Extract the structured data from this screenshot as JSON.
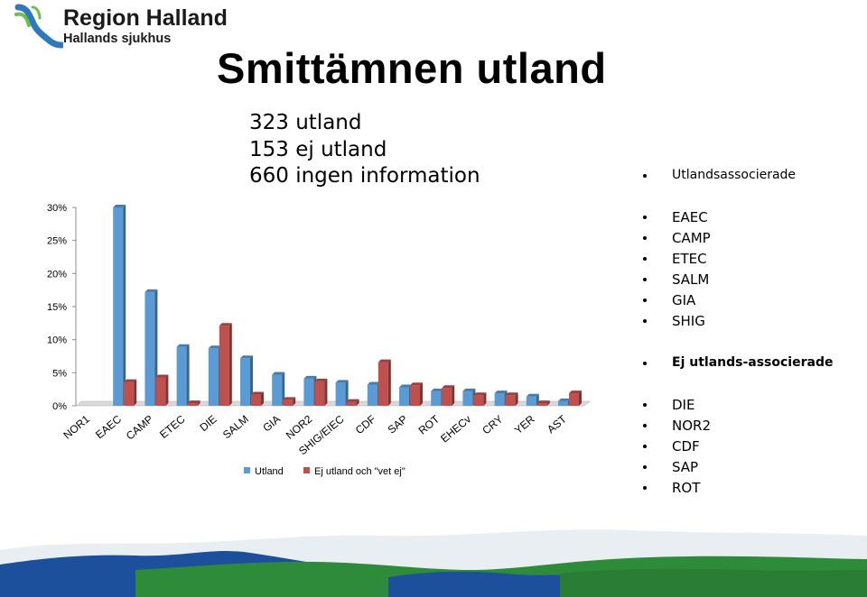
{
  "logo": {
    "title": "Region Halland",
    "subtitle": "Hallands sjukhus"
  },
  "slide": {
    "title": "Smittämnen utland",
    "counts": [
      "323 utland",
      "153 ej utland",
      "660 ingen information"
    ]
  },
  "bullets": {
    "heading_associated": "Utlandsassocierade",
    "associated": [
      "EAEC",
      "CAMP",
      "ETEC",
      "SALM",
      "GIA",
      "SHIG"
    ],
    "heading_not_associated": "Ej utlands-associerade",
    "not_associated": [
      "DIE",
      "NOR2",
      "CDF",
      "SAP",
      "ROT"
    ]
  },
  "chart_data": {
    "type": "bar",
    "style": "3d-clustered-column",
    "categories": [
      "NOR1",
      "EAEC",
      "CAMP",
      "ETEC",
      "DIE",
      "SALM",
      "GIA",
      "NOR2",
      "SHIG/EIEC",
      "CDF",
      "SAP",
      "ROT",
      "EHECv",
      "CRY",
      "YER",
      "AST"
    ],
    "series": [
      {
        "name": "Utland",
        "color": "#5b9bd5",
        "values": [
          0,
          30,
          17.2,
          8.9,
          8.7,
          7.2,
          4.7,
          4.1,
          3.5,
          3.2,
          2.8,
          2.2,
          2.2,
          1.9,
          1.4,
          0.7
        ]
      },
      {
        "name": "Ej utland och \"vet ej\"",
        "color": "#c0504d",
        "values": [
          0,
          3.6,
          4.3,
          0.4,
          12.1,
          1.7,
          0.9,
          3.7,
          0.6,
          6.6,
          3.1,
          2.7,
          1.6,
          1.6,
          0.4,
          1.9
        ]
      }
    ],
    "yticks": [
      "0%",
      "5%",
      "10%",
      "15%",
      "20%",
      "25%",
      "30%"
    ],
    "ylim": [
      0,
      30
    ],
    "legend": "bottom",
    "grid": false
  },
  "colors": {
    "accent_blue": "#5b9bd5",
    "accent_red": "#c0504d",
    "landscape_blue": "#1c4f9c",
    "landscape_green": "#2e8b3a"
  }
}
